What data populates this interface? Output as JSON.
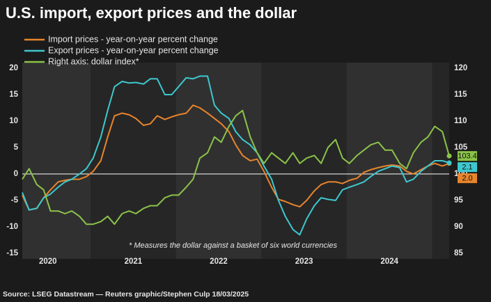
{
  "chart_data": {
    "type": "line",
    "title": "U.S. import, export prices and the dollar",
    "annotation": "* Measures the dollar against a basket of six world currencies",
    "source": "Source: LSEG Datastream — Reuters graphic/Stephen Culp 18/03/2025",
    "x": [
      2020.2,
      2020.28,
      2020.37,
      2020.45,
      2020.53,
      2020.62,
      2020.7,
      2020.78,
      2020.87,
      2020.95,
      2021.03,
      2021.12,
      2021.2,
      2021.28,
      2021.37,
      2021.45,
      2021.53,
      2021.62,
      2021.7,
      2021.78,
      2021.87,
      2021.95,
      2022.03,
      2022.12,
      2022.2,
      2022.28,
      2022.37,
      2022.45,
      2022.53,
      2022.62,
      2022.7,
      2022.78,
      2022.87,
      2022.95,
      2023.03,
      2023.12,
      2023.2,
      2023.28,
      2023.37,
      2023.45,
      2023.53,
      2023.62,
      2023.7,
      2023.78,
      2023.87,
      2023.95,
      2024.03,
      2024.12,
      2024.2,
      2024.28,
      2024.37,
      2024.45,
      2024.53,
      2024.62,
      2024.7,
      2024.78,
      2024.87,
      2024.95,
      2025.03,
      2025.12,
      2025.2
    ],
    "xlim": [
      2020.2,
      2025.2
    ],
    "xticks": [
      {
        "value": 2020.5,
        "label": "2020"
      },
      {
        "value": 2021.5,
        "label": "2021"
      },
      {
        "value": 2022.5,
        "label": "2022"
      },
      {
        "value": 2023.5,
        "label": "2023"
      },
      {
        "value": 2024.5,
        "label": "2024"
      }
    ],
    "ylim": [
      -15,
      20
    ],
    "yticks": [
      20,
      15,
      10,
      5,
      0,
      -5,
      -10,
      -15
    ],
    "y2lim": [
      85,
      120
    ],
    "y2ticks": [
      120,
      115,
      110,
      105,
      100,
      95,
      90,
      85
    ],
    "series": [
      {
        "name": "Import prices - year-on-year percent change",
        "color": "#e8852b",
        "last_label": "2.0",
        "values": [
          -4,
          -6.8,
          -6.5,
          -4.5,
          -3,
          -1.5,
          -1.2,
          -1,
          -1,
          -0.5,
          0.5,
          2.5,
          7,
          11,
          11.5,
          11.2,
          10.5,
          9.2,
          9.5,
          11,
          10.3,
          10.8,
          11.2,
          11.5,
          13,
          12.5,
          11.5,
          10.5,
          9.5,
          8,
          5.5,
          3.5,
          2.5,
          2.8,
          0.5,
          -2.5,
          -4.8,
          -5.2,
          -5.8,
          -6.2,
          -5,
          -3.2,
          -2,
          -1.5,
          -1.5,
          -1.8,
          -1.2,
          -0.8,
          0.3,
          0.8,
          1.2,
          1.5,
          1.7,
          1.5,
          0.5,
          0,
          0.8,
          1.5,
          2,
          1.5,
          2
        ]
      },
      {
        "name": "Export prices - year-on-year percent change",
        "color": "#3ec8cf",
        "last_label": "2.1",
        "values": [
          -3.5,
          -6.8,
          -6.5,
          -4.5,
          -3.8,
          -2.5,
          -1.5,
          -1,
          0,
          1,
          3,
          7,
          12,
          16.5,
          17.5,
          17.2,
          17.3,
          17,
          18,
          18,
          15,
          15,
          16.5,
          18.2,
          18,
          18.5,
          18.5,
          13,
          11.5,
          10.5,
          8,
          6.5,
          5.5,
          4,
          1.5,
          -1,
          -5,
          -8,
          -10.5,
          -11.5,
          -8.5,
          -6,
          -4.5,
          -4.8,
          -5,
          -3,
          -2.5,
          -2,
          -1.5,
          -0.5,
          0.5,
          1,
          1.5,
          1.2,
          -1.5,
          -1,
          0.5,
          1.5,
          2.5,
          2.5,
          2.1
        ]
      },
      {
        "name": "Right axis: dollar index*",
        "color": "#8bc34a",
        "axis": "y2",
        "last_label": "103.4",
        "values": [
          99,
          101,
          98,
          97,
          93,
          93,
          92.5,
          93,
          92,
          90.5,
          90.5,
          91,
          92,
          90.5,
          92.5,
          93,
          92.5,
          93.5,
          94,
          94,
          95.5,
          96,
          96,
          97.5,
          99,
          103,
          104,
          107,
          106,
          109,
          111,
          112,
          107,
          104,
          102,
          104,
          103,
          102,
          104,
          102,
          103,
          103.5,
          102,
          105,
          106.5,
          103,
          102,
          103.5,
          104.5,
          105.5,
          106,
          104.5,
          104.5,
          102,
          101,
          104,
          106,
          107,
          109,
          108,
          103.4
        ]
      }
    ]
  }
}
